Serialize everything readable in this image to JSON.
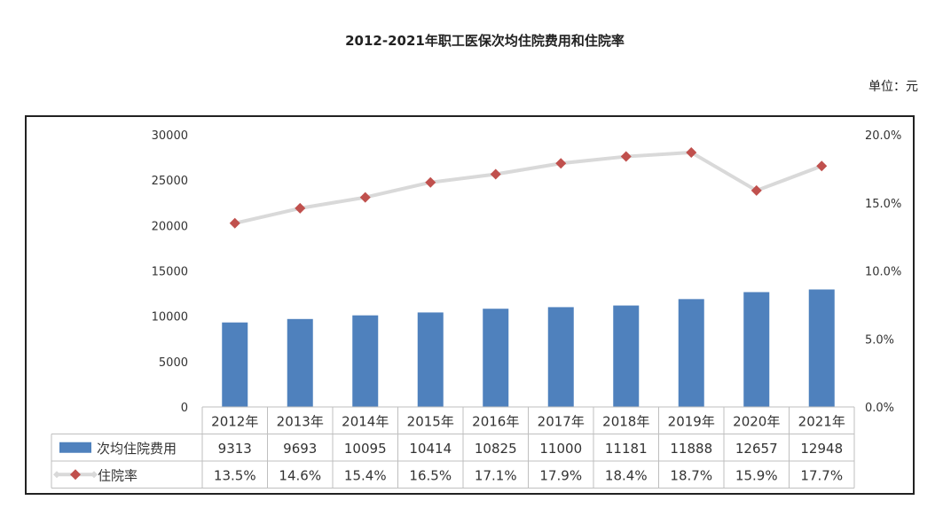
{
  "title": "2012-2021年职工医保次均住院费用和住院率",
  "unit_label": "单位：元",
  "chart_data": {
    "type": "bar",
    "categories": [
      "2012年",
      "2013年",
      "2014年",
      "2015年",
      "2016年",
      "2017年",
      "2018年",
      "2019年",
      "2020年",
      "2021年"
    ],
    "series": [
      {
        "name": "次均住院费用",
        "type": "bar",
        "axis": "left",
        "values": [
          9313,
          9693,
          10095,
          10414,
          10825,
          11000,
          11181,
          11888,
          12657,
          12948
        ],
        "labels": [
          "9313",
          "9693",
          "10095",
          "10414",
          "10825",
          "11000",
          "11181",
          "11888",
          "12657",
          "12948"
        ]
      },
      {
        "name": "住院率",
        "type": "line",
        "axis": "right",
        "values": [
          13.5,
          14.6,
          15.4,
          16.5,
          17.1,
          17.9,
          18.4,
          18.7,
          15.9,
          17.7
        ],
        "labels": [
          "13.5%",
          "14.6%",
          "15.4%",
          "16.5%",
          "17.1%",
          "17.9%",
          "18.4%",
          "18.7%",
          "15.9%",
          "17.7%"
        ]
      }
    ],
    "left_axis": {
      "ylim": [
        0,
        30000
      ],
      "ticks": [
        "0",
        "5000",
        "10000",
        "15000",
        "20000",
        "25000",
        "30000"
      ]
    },
    "right_axis": {
      "ylim": [
        0,
        20
      ],
      "ticks": [
        "0.0%",
        "5.0%",
        "10.0%",
        "15.0%",
        "20.0%"
      ]
    },
    "grid": false,
    "legend": "data-table",
    "colors": {
      "bar": "#4f81bd",
      "line": "#d9d9d9",
      "marker": "#c0504d"
    }
  }
}
